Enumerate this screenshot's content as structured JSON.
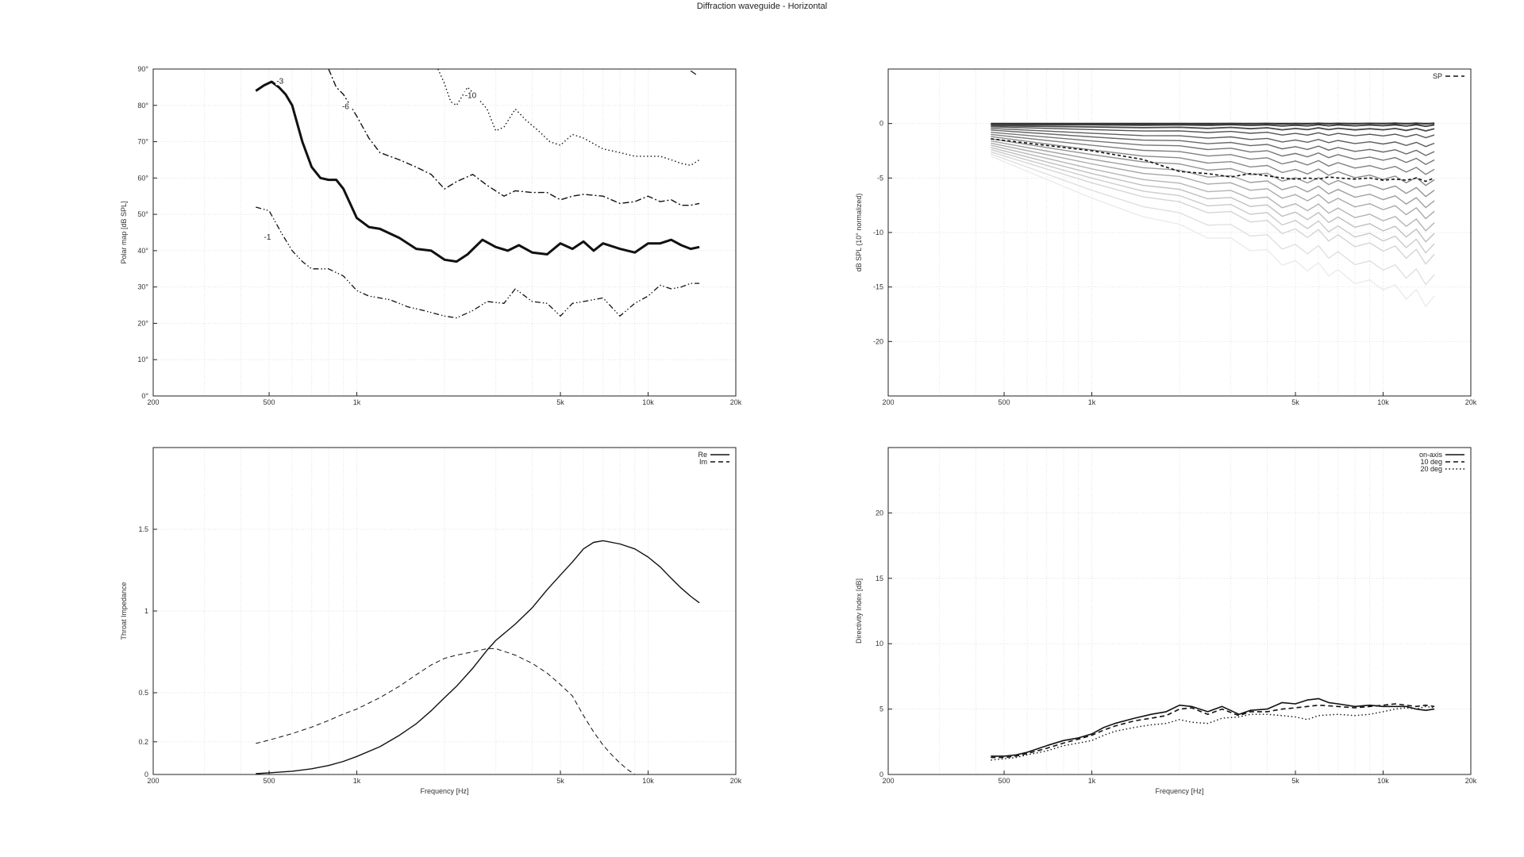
{
  "title": "Diffraction waveguide - Horizontal",
  "chart_data": [
    {
      "id": "polar-map",
      "type": "line",
      "xscale": "log",
      "xlim": [
        200,
        20000
      ],
      "ylim": [
        0,
        90
      ],
      "xticks": [
        {
          "v": 200,
          "label": "200"
        },
        {
          "v": 500,
          "label": "500"
        },
        {
          "v": 1000,
          "label": "1k"
        },
        {
          "v": 5000,
          "label": "5k"
        },
        {
          "v": 10000,
          "label": "10k"
        },
        {
          "v": 20000,
          "label": "20k"
        }
      ],
      "yticks": [
        {
          "v": 0,
          "label": "0°"
        },
        {
          "v": 10,
          "label": "10°"
        },
        {
          "v": 20,
          "label": "20°"
        },
        {
          "v": 30,
          "label": "30°"
        },
        {
          "v": 40,
          "label": "40°"
        },
        {
          "v": 50,
          "label": "50°"
        },
        {
          "v": 60,
          "label": "60°"
        },
        {
          "v": 70,
          "label": "70°"
        },
        {
          "v": 80,
          "label": "80°"
        },
        {
          "v": 90,
          "label": "90°"
        }
      ],
      "ylabel": "Polar map [dB SPL]",
      "xlabel": "",
      "grid": true,
      "series": [
        {
          "name": "-1",
          "style": "dashdotdot",
          "width": 1.3,
          "label_at": [
            480,
            43
          ],
          "x": [
            450,
            500,
            550,
            600,
            650,
            700,
            800,
            900,
            1000,
            1100,
            1300,
            1500,
            1700,
            2000,
            2200,
            2500,
            2800,
            3200,
            3500,
            4000,
            4500,
            5000,
            5500,
            6000,
            7000,
            8000,
            9000,
            10000,
            11000,
            12000,
            13000,
            14000,
            15000
          ],
          "y": [
            52,
            51,
            45,
            40,
            37,
            35,
            35,
            33,
            29,
            27.5,
            26.5,
            24.5,
            23.5,
            22,
            21.5,
            23.5,
            26,
            25.5,
            29.5,
            26,
            25.5,
            22,
            25.5,
            26,
            27,
            22,
            25.5,
            27.5,
            30.5,
            29.5,
            30,
            31,
            31
          ]
        },
        {
          "name": "-3",
          "style": "solid",
          "width": 3,
          "label_at": [
            530,
            86
          ],
          "x": [
            450,
            480,
            510,
            540,
            570,
            600,
            650,
            700,
            750,
            800,
            850,
            900,
            1000,
            1100,
            1200,
            1400,
            1600,
            1800,
            2000,
            2200,
            2400,
            2700,
            3000,
            3300,
            3600,
            4000,
            4500,
            5000,
            5500,
            6000,
            6500,
            7000,
            8000,
            9000,
            10000,
            11000,
            12000,
            13000,
            14000,
            15000
          ],
          "y": [
            84,
            85.5,
            86.5,
            85,
            83,
            80,
            70,
            63,
            60,
            59.5,
            59.5,
            57,
            49,
            46.5,
            46,
            43.5,
            40.5,
            40,
            37.5,
            37,
            39,
            43,
            41,
            40,
            41.5,
            39.5,
            39,
            42,
            40.5,
            42.5,
            40,
            42,
            40.5,
            39.5,
            42,
            42,
            43,
            41.5,
            40.5,
            41
          ]
        },
        {
          "name": "-6",
          "style": "dashdot",
          "width": 1.4,
          "label_at": [
            890,
            79
          ],
          "x": [
            800,
            850,
            900,
            1000,
            1100,
            1200,
            1400,
            1600,
            1800,
            2000,
            2200,
            2500,
            2800,
            3200,
            3500,
            4000,
            4500,
            5000,
            5500,
            6000,
            7000,
            8000,
            9000,
            10000,
            11000,
            12000,
            13000,
            14000,
            15000
          ],
          "y": [
            90,
            85,
            83,
            77,
            71,
            67,
            65,
            63,
            61,
            57,
            59,
            61,
            58,
            55,
            56.5,
            56,
            56,
            54,
            55,
            55.5,
            55,
            53,
            53.5,
            55,
            53.5,
            54,
            52.5,
            52.5,
            53
          ]
        },
        {
          "name": "-10",
          "style": "dotted",
          "width": 1.4,
          "label_at": [
            2350,
            82
          ],
          "x": [
            1900,
            2000,
            2100,
            2200,
            2400,
            2600,
            2800,
            3000,
            3200,
            3500,
            3800,
            4200,
            4600,
            5000,
            5500,
            6000,
            7000,
            8000,
            9000,
            10000,
            11000,
            12000,
            13000,
            14000,
            15000
          ],
          "y": [
            90,
            86,
            81,
            80,
            85,
            82,
            79,
            73,
            74,
            79,
            76,
            73,
            70,
            69,
            72,
            71,
            68,
            67,
            66,
            66,
            66,
            65,
            64,
            63.5,
            65
          ]
        },
        {
          "name": "",
          "style": "solid",
          "width": 1.2,
          "label_at": null,
          "x": [
            14000,
            14600
          ],
          "y": [
            89.5,
            88.5
          ]
        }
      ]
    },
    {
      "id": "normalized-spl",
      "type": "line",
      "xscale": "log",
      "xlim": [
        200,
        20000
      ],
      "ylim": [
        -25,
        5
      ],
      "xticks": [
        {
          "v": 200,
          "label": "200"
        },
        {
          "v": 500,
          "label": "500"
        },
        {
          "v": 1000,
          "label": "1k"
        },
        {
          "v": 5000,
          "label": "5k"
        },
        {
          "v": 10000,
          "label": "10k"
        },
        {
          "v": 20000,
          "label": "20k"
        }
      ],
      "yticks": [
        {
          "v": 0,
          "label": "0"
        },
        {
          "v": -5,
          "label": "-5"
        },
        {
          "v": -10,
          "label": "-10"
        },
        {
          "v": -15,
          "label": "-15"
        },
        {
          "v": -20,
          "label": "-20"
        }
      ],
      "ylabel": "dB SPL (10° normalized)",
      "xlabel": "",
      "grid": true,
      "legend": [
        {
          "label": "SP",
          "style": "dashed"
        }
      ],
      "x": [
        450,
        1000,
        1500,
        2000,
        2500,
        3000,
        3500,
        4000,
        4500,
        5000,
        5500,
        6000,
        6500,
        7000,
        8000,
        9000,
        10000,
        11000,
        12000,
        13000,
        14000,
        15000
      ],
      "base_shape": [
        0,
        -0.24,
        -0.36,
        -0.46,
        -0.5,
        -0.5,
        -0.5,
        -0.5,
        -0.5,
        -0.5,
        -0.5,
        -0.5,
        -0.5,
        -0.5,
        -0.5,
        -0.5,
        -0.5,
        -0.5,
        -0.5,
        -0.5,
        -0.5,
        -0.5
      ],
      "ripple": [
        0,
        0,
        0.02,
        0.05,
        0.03,
        0.09,
        0.02,
        0.08,
        0.1,
        0.04,
        0.07,
        0.12,
        0.05,
        0.1,
        0.05,
        0.08,
        0.02,
        0.12,
        0.06,
        0.14,
        0.09,
        0.12
      ],
      "start_offsets": [
        0,
        -0.05,
        -0.1,
        -0.2,
        -0.3,
        -0.45,
        -0.6,
        -0.8,
        -1.0,
        -1.2,
        -1.4,
        -1.6,
        -1.8,
        -2.0,
        -2.2,
        -2.4,
        -2.6,
        -2.8,
        -3.0
      ],
      "end_offsets": [
        0,
        0,
        -0.2,
        -0.6,
        -1.2,
        -2.0,
        -2.8,
        -3.6,
        -4.5,
        -5.5,
        -6.5,
        -7.5,
        -8.5,
        -9.6,
        -10.6,
        -11.6,
        -12.6,
        -14.5,
        -16.5
      ],
      "sp_curve": [
        -1.4,
        -2.5,
        -3.3,
        -4.4,
        -4.6,
        -4.9,
        -4.6,
        -4.8,
        -5.0,
        -5.1,
        -5.0,
        -5.1,
        -4.9,
        -5.0,
        -5.1,
        -5.0,
        -5.2,
        -5.1,
        -5.2,
        -5.0,
        -5.3,
        -5.0
      ]
    },
    {
      "id": "throat-impedance",
      "type": "line",
      "xscale": "log",
      "xlim": [
        200,
        20000
      ],
      "ylim": [
        0,
        2
      ],
      "xticks": [
        {
          "v": 200,
          "label": "200"
        },
        {
          "v": 500,
          "label": "500"
        },
        {
          "v": 1000,
          "label": "1k"
        },
        {
          "v": 5000,
          "label": "5k"
        },
        {
          "v": 10000,
          "label": "10k"
        },
        {
          "v": 20000,
          "label": "20k"
        }
      ],
      "yticks": [
        {
          "v": 0,
          "label": "0"
        },
        {
          "v": 0.2,
          "label": "0.2"
        },
        {
          "v": 0.5,
          "label": "0.5"
        },
        {
          "v": 1,
          "label": "1"
        },
        {
          "v": 1.5,
          "label": "1.5"
        }
      ],
      "ylabel": "Throat Impedance",
      "xlabel": "Frequency [Hz]",
      "grid": true,
      "legend": [
        {
          "label": "Re",
          "style": "solid"
        },
        {
          "label": "Im",
          "style": "dashed"
        }
      ],
      "series": [
        {
          "name": "Re",
          "style": "solid",
          "width": 1.4,
          "x": [
            450,
            500,
            600,
            700,
            800,
            900,
            1000,
            1200,
            1400,
            1600,
            1800,
            2000,
            2200,
            2500,
            2800,
            3000,
            3500,
            4000,
            4500,
            5000,
            5500,
            6000,
            6500,
            7000,
            8000,
            9000,
            10000,
            11000,
            12000,
            13000,
            14000,
            15000
          ],
          "y": [
            0.005,
            0.01,
            0.02,
            0.035,
            0.055,
            0.08,
            0.11,
            0.17,
            0.24,
            0.31,
            0.39,
            0.47,
            0.54,
            0.65,
            0.76,
            0.82,
            0.92,
            1.02,
            1.13,
            1.22,
            1.3,
            1.38,
            1.42,
            1.43,
            1.41,
            1.38,
            1.33,
            1.27,
            1.2,
            1.14,
            1.09,
            1.05
          ]
        },
        {
          "name": "Im",
          "style": "dashed",
          "width": 1,
          "x": [
            450,
            500,
            600,
            700,
            800,
            900,
            1000,
            1200,
            1400,
            1600,
            1800,
            2000,
            2200,
            2500,
            2800,
            3000,
            3500,
            4000,
            4500,
            5000,
            5500,
            6000,
            6500,
            7000,
            7500,
            8000,
            8500,
            9000
          ],
          "y": [
            0.19,
            0.21,
            0.25,
            0.29,
            0.33,
            0.37,
            0.4,
            0.47,
            0.54,
            0.61,
            0.67,
            0.71,
            0.73,
            0.75,
            0.77,
            0.77,
            0.73,
            0.68,
            0.62,
            0.55,
            0.48,
            0.36,
            0.26,
            0.18,
            0.12,
            0.07,
            0.03,
            0.0
          ]
        }
      ]
    },
    {
      "id": "directivity-index",
      "type": "line",
      "xscale": "log",
      "xlim": [
        200,
        20000
      ],
      "ylim": [
        0,
        25
      ],
      "xticks": [
        {
          "v": 200,
          "label": "200"
        },
        {
          "v": 500,
          "label": "500"
        },
        {
          "v": 1000,
          "label": "1k"
        },
        {
          "v": 5000,
          "label": "5k"
        },
        {
          "v": 10000,
          "label": "10k"
        },
        {
          "v": 20000,
          "label": "20k"
        }
      ],
      "yticks": [
        {
          "v": 0,
          "label": "0"
        },
        {
          "v": 5,
          "label": "5"
        },
        {
          "v": 10,
          "label": "10"
        },
        {
          "v": 15,
          "label": "15"
        },
        {
          "v": 20,
          "label": "20"
        }
      ],
      "ylabel": "Directivity Index [dB]",
      "xlabel": "Frequency [Hz]",
      "grid": true,
      "legend": [
        {
          "label": "on-axis",
          "style": "solid"
        },
        {
          "label": "10 deg",
          "style": "dashed"
        },
        {
          "label": "20 deg",
          "style": "dotted"
        }
      ],
      "series": [
        {
          "name": "on-axis",
          "style": "solid",
          "width": 1.6,
          "x": [
            450,
            500,
            550,
            600,
            700,
            800,
            900,
            1000,
            1100,
            1200,
            1400,
            1600,
            1800,
            2000,
            2200,
            2500,
            2800,
            3200,
            3500,
            4000,
            4500,
            5000,
            5500,
            6000,
            6500,
            7000,
            8000,
            9000,
            10000,
            11000,
            12000,
            13000,
            14000,
            15000
          ],
          "y": [
            1.4,
            1.4,
            1.5,
            1.7,
            2.2,
            2.6,
            2.8,
            3.1,
            3.6,
            3.9,
            4.3,
            4.6,
            4.8,
            5.3,
            5.2,
            4.8,
            5.2,
            4.6,
            4.9,
            5.0,
            5.5,
            5.4,
            5.7,
            5.8,
            5.5,
            5.4,
            5.2,
            5.3,
            5.2,
            5.2,
            5.2,
            5.0,
            4.9,
            5.0
          ]
        },
        {
          "name": "10 deg",
          "style": "dashed",
          "width": 1.6,
          "x": [
            450,
            500,
            550,
            600,
            700,
            800,
            900,
            1000,
            1100,
            1200,
            1400,
            1600,
            1800,
            2000,
            2200,
            2500,
            2800,
            3200,
            3500,
            4000,
            4500,
            5000,
            5500,
            6000,
            7000,
            8000,
            9000,
            10000,
            11000,
            12000,
            13000,
            14000,
            15000
          ],
          "y": [
            1.3,
            1.3,
            1.4,
            1.6,
            2.0,
            2.4,
            2.7,
            3.0,
            3.4,
            3.7,
            4.1,
            4.3,
            4.5,
            5.0,
            5.1,
            4.6,
            5.0,
            4.5,
            4.8,
            4.8,
            5.0,
            5.1,
            5.2,
            5.3,
            5.2,
            5.1,
            5.2,
            5.3,
            5.4,
            5.3,
            5.2,
            5.3,
            5.2
          ]
        },
        {
          "name": "20 deg",
          "style": "dotted",
          "width": 1.4,
          "x": [
            450,
            500,
            550,
            600,
            700,
            800,
            900,
            1000,
            1100,
            1200,
            1400,
            1600,
            1800,
            2000,
            2200,
            2500,
            2800,
            3200,
            3500,
            4000,
            4500,
            5000,
            5500,
            6000,
            7000,
            8000,
            9000,
            10000,
            11000,
            12000,
            13000,
            14000,
            15000
          ],
          "y": [
            1.1,
            1.2,
            1.3,
            1.5,
            1.8,
            2.2,
            2.4,
            2.6,
            3.0,
            3.3,
            3.6,
            3.8,
            3.9,
            4.2,
            4.0,
            3.9,
            4.3,
            4.4,
            4.6,
            4.6,
            4.5,
            4.4,
            4.2,
            4.5,
            4.6,
            4.5,
            4.6,
            4.8,
            5.0,
            5.1,
            5.0,
            5.2,
            5.1
          ]
        }
      ]
    }
  ]
}
